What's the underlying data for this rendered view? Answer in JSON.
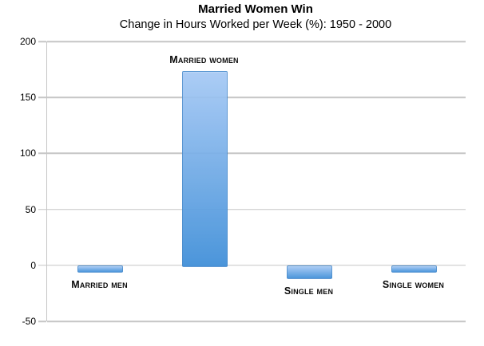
{
  "chart": {
    "title": "Married Women Win",
    "subtitle": "Change in Hours Worked per Week (%): 1950 - 2000"
  },
  "chart_data": {
    "type": "bar",
    "title": "Married Women Win",
    "subtitle": "Change in Hours Worked per Week (%): 1950 - 2000",
    "categories": [
      "Married men",
      "Married women",
      "Single men",
      "Single women"
    ],
    "values": [
      -5,
      174,
      -11,
      -5
    ],
    "xlabel": "",
    "ylabel": "",
    "ylim": [
      -50,
      200
    ],
    "yticks": [
      200,
      150,
      100,
      50,
      0,
      -50
    ],
    "grid": true,
    "legend": false,
    "colors": {
      "bar_gradient_top": "#A6C9F5",
      "bar_gradient_bottom": "#3E8ED8",
      "bar_border": "#3E82C4",
      "gridline": "#C6C6C6",
      "text": "#000000"
    }
  }
}
